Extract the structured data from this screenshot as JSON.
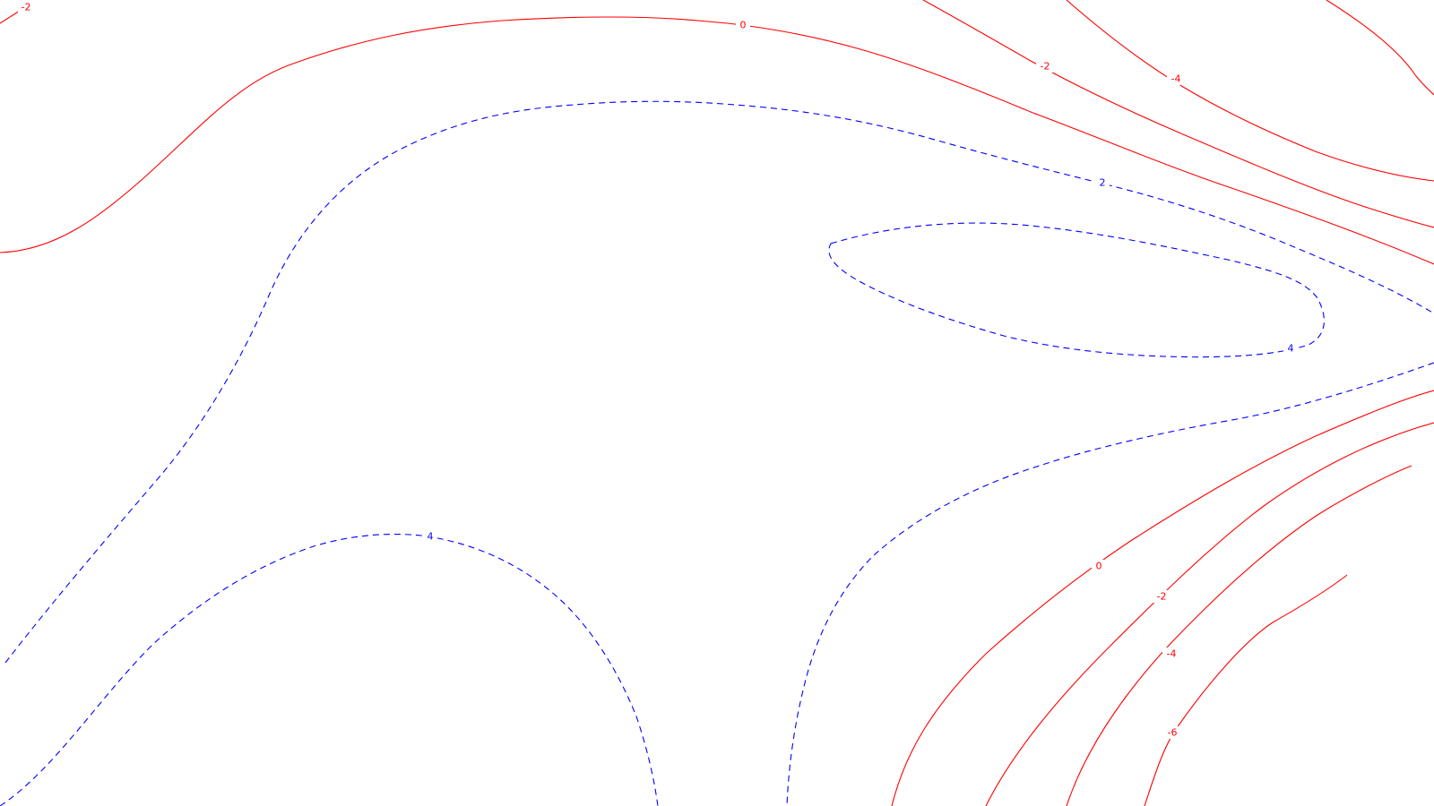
{
  "chart_data": {
    "type": "contour",
    "title": "",
    "xlabel": "",
    "ylabel": "",
    "grid": false,
    "legend": "none",
    "colors": {
      "negative": "#ff0000",
      "positive": "#0000ff",
      "background": "#ffffff"
    },
    "line_styles": {
      "negative": "solid",
      "positive": "dashed"
    },
    "levels": [
      -6,
      -4,
      -2,
      0,
      2,
      4
    ],
    "contour_labels": [
      {
        "id": "lbl-neg2-topleft",
        "text": "-2",
        "value": -2,
        "sign": "negative"
      },
      {
        "id": "lbl-zero-top",
        "text": "0",
        "value": 0,
        "sign": "negative"
      },
      {
        "id": "lbl-neg2-topright",
        "text": "-2",
        "value": -2,
        "sign": "negative"
      },
      {
        "id": "lbl-neg4-topright",
        "text": "-4",
        "value": -4,
        "sign": "negative"
      },
      {
        "id": "lbl-pos2-top",
        "text": "2",
        "value": 2,
        "sign": "positive"
      },
      {
        "id": "lbl-pos4-right",
        "text": "4",
        "value": 4,
        "sign": "positive"
      },
      {
        "id": "lbl-pos4-bottomleft",
        "text": "4",
        "value": 4,
        "sign": "positive"
      },
      {
        "id": "lbl-zero-bottom",
        "text": "0",
        "value": 0,
        "sign": "negative"
      },
      {
        "id": "lbl-neg2-bottom",
        "text": "-2",
        "value": -2,
        "sign": "negative"
      },
      {
        "id": "lbl-neg4-bottom",
        "text": "-4",
        "value": -4,
        "sign": "negative"
      },
      {
        "id": "lbl-neg6-bottom",
        "text": "-6",
        "value": -6,
        "sign": "negative"
      }
    ]
  }
}
